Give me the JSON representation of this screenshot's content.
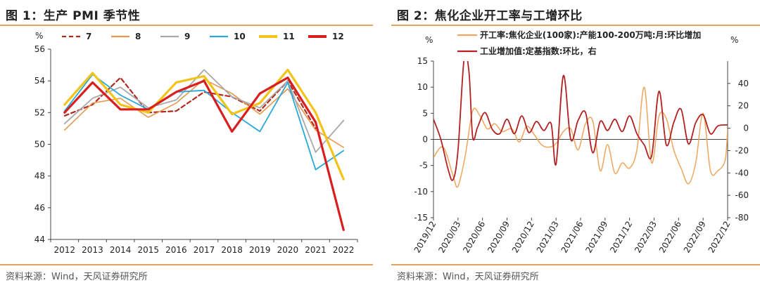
{
  "left": {
    "title": "图 1：生产 PMI 季节性",
    "source": "资料来源：Wind，天风证券研究所",
    "unit": "%",
    "chart_data": {
      "type": "line",
      "categories": [
        "2012",
        "2013",
        "2014",
        "2015",
        "2016",
        "2017",
        "2018",
        "2019",
        "2020",
        "2021",
        "2022"
      ],
      "ylim": [
        44,
        56
      ],
      "yticks": [
        44,
        46,
        48,
        50,
        52,
        54,
        56
      ],
      "series": [
        {
          "name": "7",
          "color": "#b22a1c",
          "dash": "6,4",
          "width": 2.2,
          "values": [
            51.8,
            52.5,
            54.2,
            52.0,
            52.1,
            53.3,
            53.0,
            52.1,
            54.0,
            51.0,
            null
          ]
        },
        {
          "name": "8",
          "color": "#e8964a",
          "dash": "",
          "width": 1.6,
          "values": [
            50.9,
            52.6,
            52.9,
            51.7,
            52.6,
            54.1,
            53.2,
            51.9,
            53.5,
            50.9,
            49.8
          ]
        },
        {
          "name": "9",
          "color": "#a9a9a9",
          "dash": "",
          "width": 1.8,
          "values": [
            51.3,
            52.9,
            53.6,
            52.3,
            52.8,
            54.7,
            53.0,
            52.3,
            54.0,
            49.5,
            51.5
          ]
        },
        {
          "name": "10",
          "color": "#29a8d9",
          "dash": "",
          "width": 1.8,
          "values": [
            52.1,
            54.4,
            53.1,
            52.2,
            53.3,
            53.4,
            52.0,
            50.8,
            53.9,
            48.4,
            49.6
          ]
        },
        {
          "name": "11",
          "color": "#f2c419",
          "dash": "",
          "width": 3.2,
          "values": [
            52.5,
            54.5,
            52.5,
            52.0,
            53.9,
            54.3,
            51.9,
            52.6,
            54.7,
            52.0,
            47.8
          ]
        },
        {
          "name": "12",
          "color": "#d81e1e",
          "dash": "",
          "width": 3.2,
          "values": [
            52.0,
            53.9,
            52.2,
            52.2,
            53.3,
            54.0,
            50.8,
            53.2,
            54.2,
            51.4,
            44.6
          ]
        }
      ]
    }
  },
  "right": {
    "title": "图 2：焦化企业开工率与工增环比",
    "source": "资料来源：Wind，天风证券研究所",
    "unit_left": "%",
    "unit_right": "%",
    "chart_data": {
      "type": "line",
      "xlabels": [
        "2019/12",
        "2020/03",
        "2020/06",
        "2020/09",
        "2020/12",
        "2021/03",
        "2021/06",
        "2021/09",
        "2021/12",
        "2022/03",
        "2022/06",
        "2022/09",
        "2022/12"
      ],
      "y_left": {
        "ylim": [
          -15,
          15
        ],
        "yticks": [
          -15,
          -10,
          -5,
          0,
          5,
          10,
          15
        ]
      },
      "y_right": {
        "ylim": [
          -80,
          60
        ],
        "yticks": [
          -80,
          -60,
          -40,
          -20,
          0,
          20,
          40
        ]
      },
      "series": [
        {
          "name": "开工率:焦化企业(100家):产能100-200万吨:月:环比增加",
          "axis": "left",
          "color": "#f0a55c",
          "width": 1.5,
          "points": [
            [
              0,
              -3.5
            ],
            [
              0.4,
              -1.5
            ],
            [
              0.8,
              -7.0
            ],
            [
              1.0,
              -9.0
            ],
            [
              1.3,
              -3.0
            ],
            [
              1.6,
              5.5
            ],
            [
              1.9,
              4.5
            ],
            [
              2.2,
              2.0
            ],
            [
              2.5,
              3.0
            ],
            [
              2.8,
              1.5
            ],
            [
              3.2,
              2.0
            ],
            [
              3.5,
              -0.5
            ],
            [
              3.8,
              2.5
            ],
            [
              4.1,
              1.0
            ],
            [
              4.4,
              -1.0
            ],
            [
              4.7,
              -1.5
            ],
            [
              5.0,
              -0.8
            ],
            [
              5.3,
              1.5
            ],
            [
              5.6,
              2.0
            ],
            [
              5.9,
              -2.0
            ],
            [
              6.2,
              3.0
            ],
            [
              6.5,
              3.5
            ],
            [
              6.8,
              -6.0
            ],
            [
              7.1,
              -1.0
            ],
            [
              7.4,
              -6.5
            ],
            [
              7.7,
              -4.5
            ],
            [
              8.0,
              -5.5
            ],
            [
              8.3,
              -2.0
            ],
            [
              8.6,
              10.0
            ],
            [
              8.9,
              -4.5
            ],
            [
              9.2,
              4.5
            ],
            [
              9.5,
              4.0
            ],
            [
              9.8,
              -2.0
            ],
            [
              10.1,
              -5.5
            ],
            [
              10.4,
              -8.5
            ],
            [
              10.7,
              -4.5
            ],
            [
              11.0,
              5.0
            ],
            [
              11.3,
              -6.0
            ],
            [
              11.6,
              -6.0
            ],
            [
              11.9,
              -4.0
            ],
            [
              12.0,
              2.0
            ]
          ]
        },
        {
          "name": "工业增加值:定基指数:环比，右",
          "axis": "right",
          "color": "#b22222",
          "width": 1.8,
          "points": [
            [
              0,
              8.0
            ],
            [
              0.3,
              -10.0
            ],
            [
              0.6,
              -37.0
            ],
            [
              0.8,
              -46.0
            ],
            [
              1.0,
              -20.0
            ],
            [
              1.25,
              62.0
            ],
            [
              1.45,
              50.0
            ],
            [
              1.6,
              -8.0
            ],
            [
              1.8,
              1.0
            ],
            [
              2.1,
              14.0
            ],
            [
              2.4,
              -1.0
            ],
            [
              2.7,
              -5.0
            ],
            [
              3.0,
              8.0
            ],
            [
              3.3,
              -5.0
            ],
            [
              3.6,
              11.0
            ],
            [
              3.9,
              -4.0
            ],
            [
              4.2,
              6.0
            ],
            [
              4.5,
              -2.0
            ],
            [
              4.8,
              4.0
            ],
            [
              5.0,
              -32.0
            ],
            [
              5.3,
              47.0
            ],
            [
              5.6,
              -10.0
            ],
            [
              5.9,
              7.0
            ],
            [
              6.2,
              14.0
            ],
            [
              6.5,
              -22.0
            ],
            [
              6.8,
              6.0
            ],
            [
              7.1,
              -2.0
            ],
            [
              7.4,
              8.0
            ],
            [
              7.7,
              -3.0
            ],
            [
              8.0,
              11.0
            ],
            [
              8.3,
              -5.0
            ],
            [
              8.6,
              -15.0
            ],
            [
              8.9,
              -25.0
            ],
            [
              9.2,
              33.0
            ],
            [
              9.5,
              -15.0
            ],
            [
              9.8,
              5.0
            ],
            [
              10.1,
              17.0
            ],
            [
              10.4,
              -14.0
            ],
            [
              10.7,
              5.0
            ],
            [
              11.0,
              12.0
            ],
            [
              11.3,
              -5.0
            ],
            [
              11.6,
              2.0
            ],
            [
              12.0,
              3.0
            ]
          ]
        }
      ]
    }
  }
}
